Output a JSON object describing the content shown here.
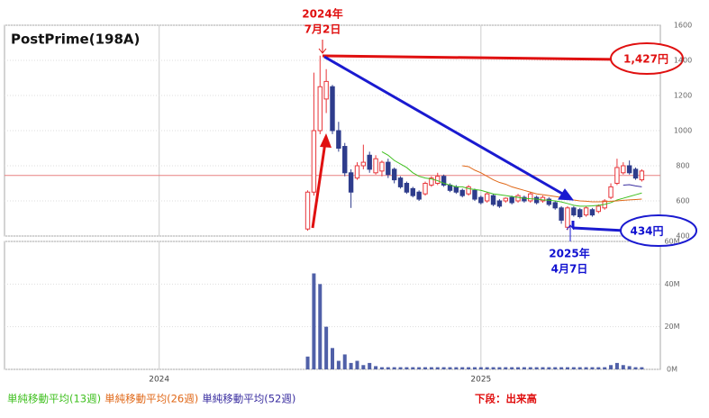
{
  "chart_data": {
    "type": "candlestick",
    "title": "PostPrime(198A)",
    "x": [
      24,
      25,
      26,
      27,
      28,
      29,
      30,
      31,
      32,
      33,
      34,
      35,
      36,
      37,
      38,
      39,
      40,
      41,
      42,
      43,
      44,
      45,
      46,
      47,
      48,
      49,
      50,
      51,
      52,
      53,
      54,
      55,
      56,
      57,
      58,
      59,
      60,
      61,
      62,
      63,
      64,
      65,
      66,
      67,
      68,
      69,
      70,
      71,
      72,
      73,
      74,
      75,
      76,
      77,
      78
    ],
    "open": [
      440,
      650,
      1000,
      1180,
      1250,
      1000,
      910,
      760,
      730,
      800,
      860,
      760,
      770,
      820,
      780,
      730,
      700,
      670,
      650,
      640,
      690,
      700,
      740,
      690,
      680,
      660,
      640,
      660,
      620,
      600,
      630,
      600,
      600,
      620,
      600,
      620,
      600,
      620,
      600,
      610,
      590,
      560,
      450,
      560,
      550,
      520,
      550,
      540,
      560,
      620,
      700,
      760,
      800,
      780,
      720
    ],
    "high": [
      660,
      1330,
      1427,
      1350,
      1260,
      1050,
      930,
      780,
      820,
      920,
      880,
      860,
      830,
      840,
      790,
      740,
      710,
      680,
      660,
      710,
      740,
      760,
      750,
      700,
      690,
      670,
      690,
      670,
      630,
      650,
      640,
      610,
      620,
      630,
      640,
      630,
      650,
      630,
      630,
      620,
      600,
      570,
      570,
      570,
      560,
      570,
      560,
      580,
      610,
      700,
      840,
      820,
      830,
      790,
      780
    ],
    "low": [
      430,
      630,
      980,
      1100,
      980,
      880,
      740,
      560,
      720,
      780,
      760,
      750,
      740,
      730,
      700,
      670,
      640,
      620,
      600,
      630,
      680,
      690,
      680,
      650,
      640,
      620,
      630,
      600,
      580,
      590,
      570,
      560,
      590,
      580,
      590,
      590,
      590,
      580,
      590,
      570,
      550,
      470,
      434,
      510,
      500,
      510,
      510,
      530,
      550,
      610,
      690,
      750,
      750,
      720,
      710
    ],
    "close": [
      650,
      1000,
      1250,
      1280,
      1000,
      900,
      760,
      650,
      800,
      820,
      780,
      840,
      820,
      750,
      720,
      680,
      650,
      630,
      610,
      700,
      730,
      740,
      690,
      660,
      650,
      630,
      680,
      610,
      590,
      640,
      580,
      570,
      615,
      590,
      630,
      600,
      640,
      590,
      620,
      580,
      560,
      490,
      560,
      520,
      510,
      560,
      520,
      570,
      600,
      680,
      790,
      800,
      760,
      730,
      770
    ],
    "up_color": "#e8353a",
    "down_color": "#2e3c8c",
    "xlim": [
      -25,
      81
    ],
    "xticks": [
      {
        "value": 0,
        "label": "2024"
      },
      {
        "value": 52,
        "label": "2025"
      }
    ],
    "ylim": [
      400,
      1600
    ],
    "yticks": [
      400,
      600,
      800,
      1000,
      1200,
      1400,
      1600
    ],
    "hline": 745,
    "hline_color": "#e88080",
    "series": [
      {
        "name": "単純移動平均(13週)",
        "color": "#40c020",
        "values": [
          null,
          null,
          null,
          null,
          null,
          null,
          null,
          null,
          null,
          null,
          null,
          null,
          880,
          860,
          830,
          810,
          790,
          760,
          740,
          730,
          725,
          715,
          700,
          690,
          680,
          680,
          670,
          665,
          660,
          650,
          640,
          635,
          630,
          625,
          620,
          615,
          612,
          610,
          606,
          604,
          600,
          594,
          585,
          575,
          570,
          570,
          572,
          575,
          580,
          590,
          605,
          615,
          625,
          635,
          645
        ]
      },
      {
        "name": "単純移動平均(26週)",
        "color": "#e06818",
        "values": [
          null,
          null,
          null,
          null,
          null,
          null,
          null,
          null,
          null,
          null,
          null,
          null,
          null,
          null,
          null,
          null,
          null,
          null,
          null,
          null,
          null,
          null,
          null,
          null,
          null,
          800,
          795,
          775,
          760,
          740,
          720,
          705,
          695,
          680,
          670,
          660,
          650,
          640,
          635,
          630,
          625,
          620,
          612,
          605,
          600,
          598,
          595,
          595,
          596,
          598,
          600,
          603,
          606,
          608,
          610
        ]
      },
      {
        "name": "単純移動平均(52週)",
        "color": "#3a2ea0",
        "values": [
          null,
          null,
          null,
          null,
          null,
          null,
          null,
          null,
          null,
          null,
          null,
          null,
          null,
          null,
          null,
          null,
          null,
          null,
          null,
          null,
          null,
          null,
          null,
          null,
          null,
          null,
          null,
          null,
          null,
          null,
          null,
          null,
          null,
          null,
          null,
          null,
          null,
          null,
          null,
          null,
          null,
          null,
          null,
          null,
          null,
          null,
          null,
          null,
          null,
          null,
          null,
          690,
          692,
          685,
          680
        ]
      }
    ],
    "volume": {
      "values": [
        6,
        45,
        40,
        20,
        10,
        4,
        7,
        3,
        4,
        2,
        3,
        1.5,
        1,
        1,
        1,
        1,
        1,
        1,
        1,
        1,
        1,
        1,
        1,
        1,
        1,
        1,
        1,
        1,
        1,
        1,
        1,
        1,
        1,
        1,
        1,
        1,
        1,
        1,
        1,
        1,
        1,
        1,
        1,
        1,
        1,
        1,
        1,
        1,
        1,
        2,
        3,
        2,
        1.5,
        1,
        1
      ],
      "color": "#5060a8",
      "ylim": [
        0,
        60
      ],
      "yticks": [
        {
          "value": 0,
          "label": "0M"
        },
        {
          "value": 20,
          "label": "20M"
        },
        {
          "value": 40,
          "label": "40M"
        },
        {
          "value": 60,
          "label": "60M"
        }
      ]
    },
    "annotations": [
      {
        "lines": [
          "2024年",
          "7月2日"
        ],
        "color": "#e01010"
      },
      {
        "lines": [
          "1,427円"
        ],
        "color": "#e01010"
      },
      {
        "lines": [
          "2025年",
          "4月7日"
        ],
        "color": "#1010d0"
      },
      {
        "lines": [
          "434円"
        ],
        "color": "#1010d0"
      }
    ],
    "note": "下段：出来高",
    "note_color": "#e01010"
  }
}
